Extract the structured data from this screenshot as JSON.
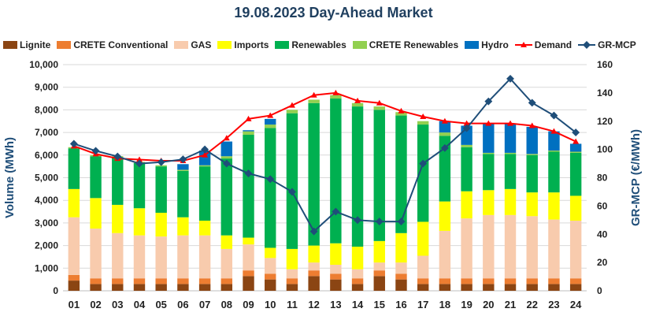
{
  "chart_data": {
    "type": "bar",
    "title": "19.08.2023  Day-Ahead Market",
    "ylabel": "Volume (MWh)",
    "y2label": "GR-MCP (€/MWh)",
    "ylim": [
      0,
      10000
    ],
    "y2lim": [
      0,
      160
    ],
    "yticks": [
      "0",
      "1,000",
      "2,000",
      "3,000",
      "4,000",
      "5,000",
      "6,000",
      "7,000",
      "8,000",
      "9,000",
      "10,000"
    ],
    "y2ticks": [
      "0",
      "20",
      "40",
      "60",
      "80",
      "100",
      "120",
      "140",
      "160"
    ],
    "categories": [
      "01",
      "02",
      "03",
      "04",
      "05",
      "06",
      "07",
      "08",
      "09",
      "10",
      "11",
      "12",
      "13",
      "14",
      "15",
      "16",
      "17",
      "18",
      "19",
      "20",
      "21",
      "22",
      "23",
      "24"
    ],
    "legend_position": "top",
    "series": [
      {
        "name": "Lignite",
        "kind": "bar",
        "color": "#8b4513",
        "values": [
          450,
          300,
          300,
          300,
          300,
          300,
          300,
          300,
          650,
          500,
          300,
          650,
          500,
          300,
          650,
          500,
          300,
          300,
          300,
          300,
          300,
          300,
          300,
          300
        ]
      },
      {
        "name": "CRETE Conventional",
        "kind": "bar",
        "color": "#ed7d31",
        "values": [
          250,
          250,
          250,
          250,
          250,
          250,
          250,
          250,
          250,
          250,
          250,
          250,
          250,
          250,
          250,
          250,
          250,
          250,
          250,
          250,
          250,
          250,
          250,
          250
        ]
      },
      {
        "name": "GAS",
        "kind": "bar",
        "color": "#f8cbad",
        "values": [
          2550,
          2200,
          2000,
          1900,
          1850,
          1900,
          1900,
          1300,
          1150,
          700,
          400,
          350,
          400,
          400,
          350,
          500,
          1000,
          2100,
          2650,
          2800,
          2800,
          2750,
          2600,
          2550
        ]
      },
      {
        "name": "Imports",
        "kind": "bar",
        "color": "#ffff00",
        "values": [
          1250,
          1350,
          1250,
          1200,
          1050,
          800,
          650,
          600,
          300,
          450,
          900,
          750,
          950,
          1000,
          950,
          1300,
          1500,
          1300,
          1200,
          1100,
          1150,
          1050,
          1200,
          1100
        ]
      },
      {
        "name": "Renewables",
        "kind": "bar",
        "color": "#00b050",
        "values": [
          1800,
          1850,
          2100,
          2000,
          2050,
          2050,
          2400,
          3400,
          4550,
          5300,
          6000,
          6300,
          6400,
          6200,
          5800,
          5200,
          4300,
          2900,
          1950,
          1600,
          1550,
          1650,
          1800,
          1900
        ]
      },
      {
        "name": "CRETE Renewables",
        "kind": "bar",
        "color": "#92d050",
        "values": [
          50,
          50,
          50,
          50,
          50,
          50,
          50,
          100,
          150,
          150,
          150,
          150,
          150,
          150,
          150,
          150,
          150,
          150,
          100,
          50,
          50,
          50,
          50,
          50
        ]
      },
      {
        "name": "Hydro",
        "kind": "bar",
        "color": "#0070c0",
        "values": [
          0,
          0,
          0,
          0,
          0,
          250,
          650,
          650,
          50,
          250,
          0,
          0,
          0,
          0,
          0,
          0,
          0,
          500,
          850,
          1300,
          1300,
          1200,
          850,
          350
        ]
      },
      {
        "name": "Demand",
        "kind": "line",
        "axis": "left",
        "color": "#ff0000",
        "values": [
          6400,
          6050,
          5850,
          5800,
          5750,
          5750,
          6000,
          6750,
          7600,
          7750,
          8200,
          8650,
          8750,
          8400,
          8300,
          7950,
          7700,
          7500,
          7400,
          7400,
          7400,
          7300,
          7050,
          6600
        ]
      },
      {
        "name": "GR-MCP",
        "kind": "line",
        "axis": "right",
        "color": "#1f4e79",
        "values": [
          104,
          99,
          95,
          90,
          91,
          93,
          100,
          90,
          83,
          79,
          70,
          42,
          56,
          50,
          49,
          49,
          90,
          101,
          115,
          134,
          150,
          133,
          124,
          112
        ]
      }
    ]
  }
}
